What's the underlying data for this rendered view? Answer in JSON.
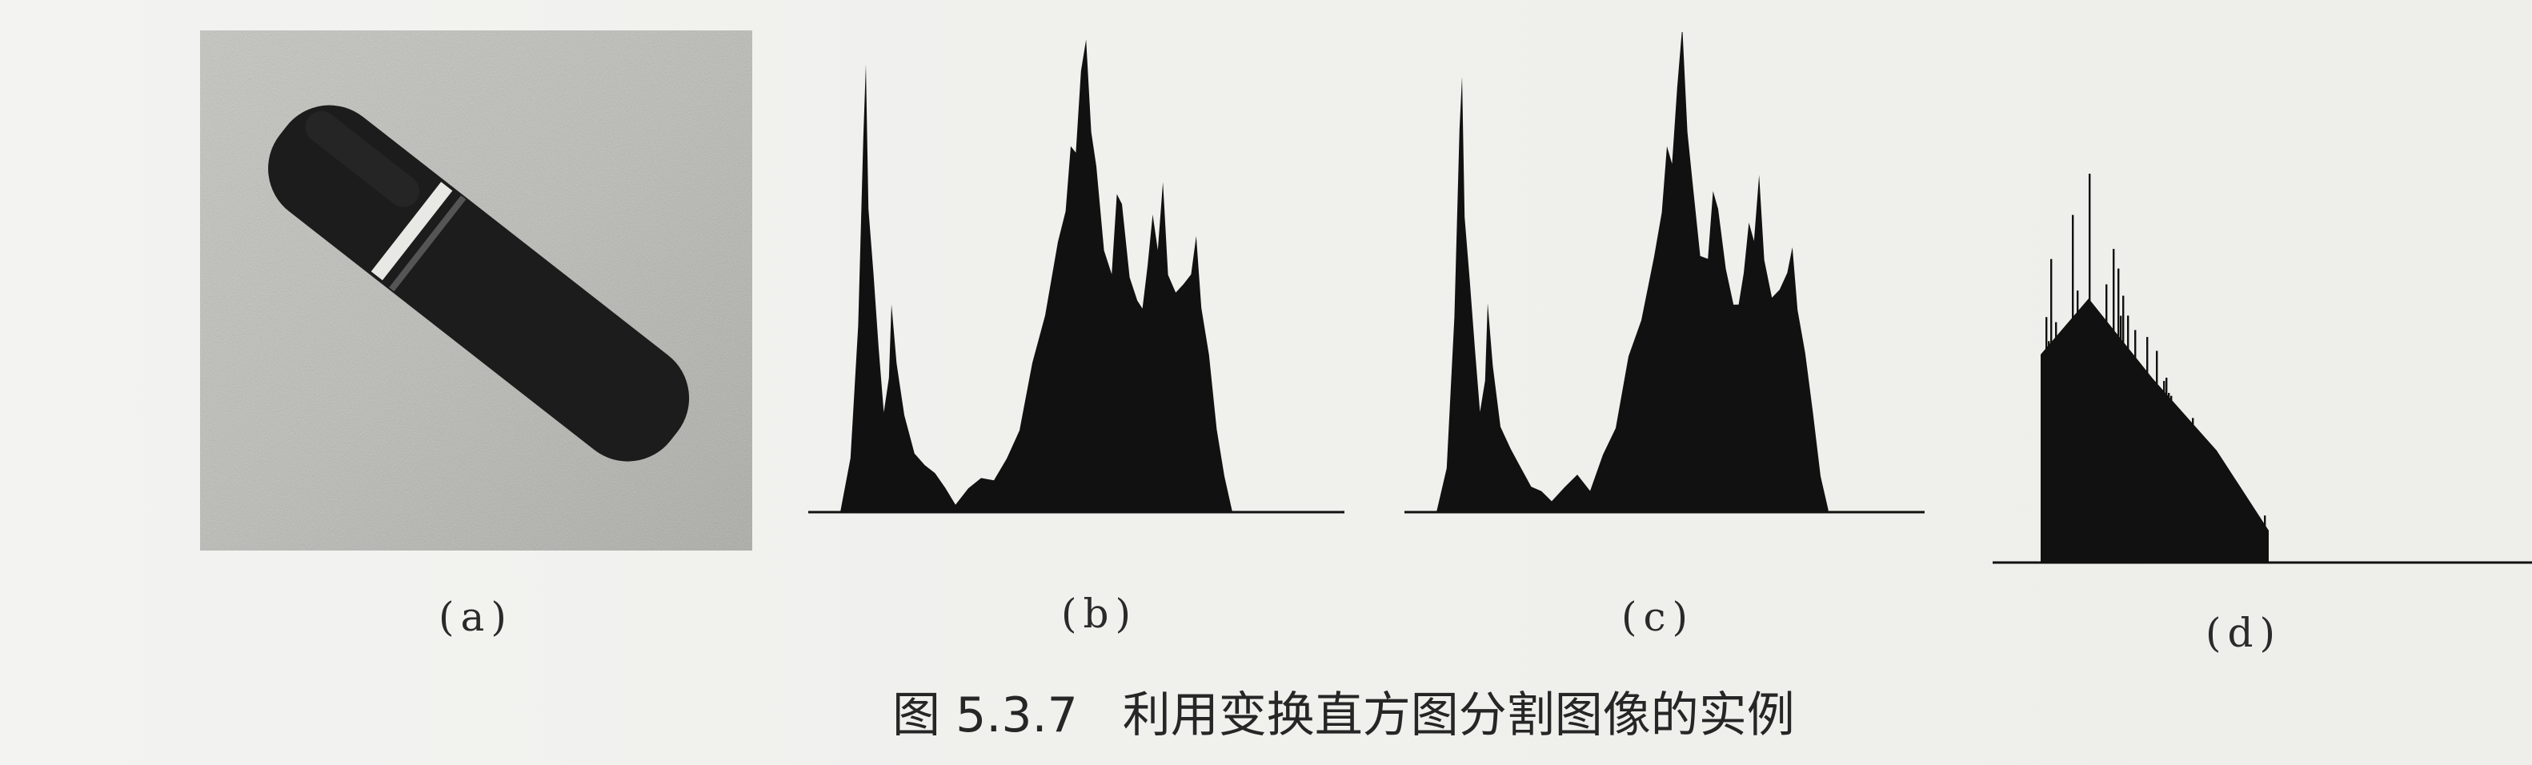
{
  "figure": {
    "caption_number": "图 5.3.7",
    "caption_text": "利用变换直方图分割图像的实例",
    "panels": [
      {
        "id": "a",
        "label": "(a)",
        "content": "photo"
      },
      {
        "id": "b",
        "label": "(b)",
        "content": "histogram"
      },
      {
        "id": "c",
        "label": "(c)",
        "content": "histogram"
      },
      {
        "id": "d",
        "label": "(d)",
        "content": "histogram"
      }
    ]
  },
  "colors": {
    "ink": "#111111",
    "paper": "#f1f1ee",
    "photo_background": "#bdbdb8",
    "object": "#1a1a1a"
  }
}
